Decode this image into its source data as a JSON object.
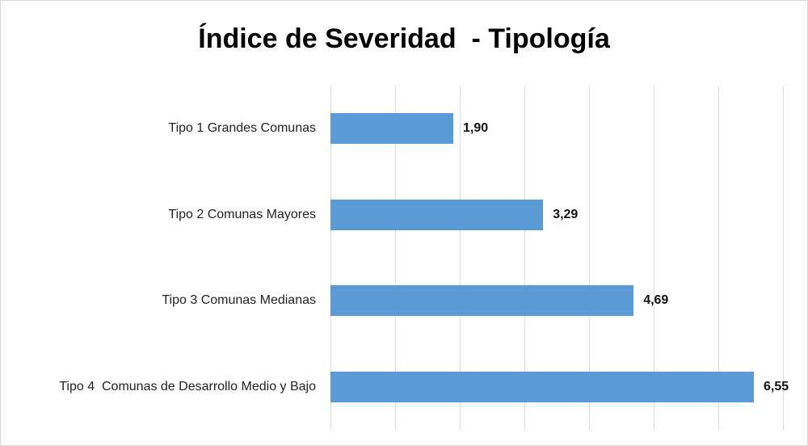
{
  "chart_data": {
    "type": "bar",
    "orientation": "horizontal",
    "title": "Índice de Severidad  - Tipología",
    "categories": [
      "Tipo 1 Grandes Comunas",
      "Tipo 2 Comunas Mayores",
      "Tipo 3 Comunas Medianas",
      "Tipo 4  Comunas de Desarrollo Medio y Bajo"
    ],
    "values": [
      1.9,
      3.29,
      4.69,
      6.55
    ],
    "value_labels": [
      "1,90",
      "3,29",
      "4,69",
      "6,55"
    ],
    "color": "#5b9bd5",
    "xlim": [
      0,
      7
    ],
    "xticks": [
      0,
      1,
      2,
      3,
      4,
      5,
      6,
      7
    ],
    "grid": true
  }
}
